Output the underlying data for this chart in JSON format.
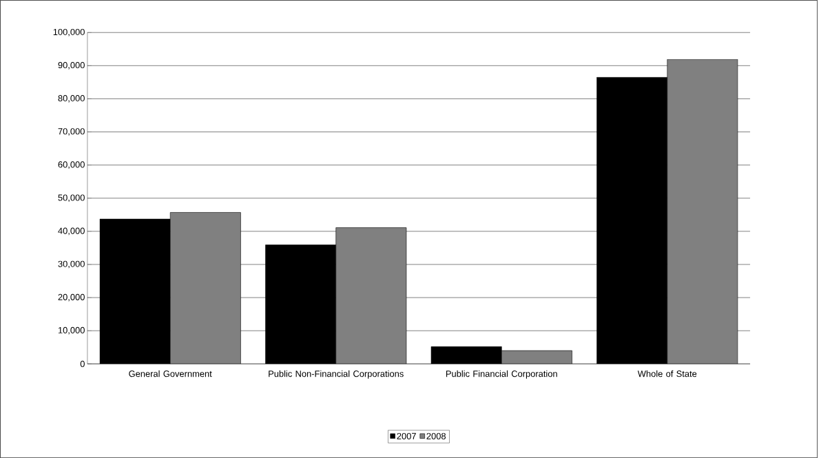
{
  "chart_data": {
    "type": "bar",
    "categories": [
      "General Government",
      "Public Non-Financial Corporations",
      "Public Financial Corporation",
      "Whole of State"
    ],
    "series": [
      {
        "name": "2007",
        "color": "#000000",
        "values": [
          43700,
          35900,
          5200,
          86500
        ]
      },
      {
        "name": "2008",
        "color": "#808080",
        "values": [
          45700,
          41100,
          4000,
          91900
        ]
      }
    ],
    "ylim": [
      0,
      100000
    ],
    "yticks": [
      {
        "value": 0,
        "label": "0"
      },
      {
        "value": 10000,
        "label": "10,000"
      },
      {
        "value": 20000,
        "label": "20,000"
      },
      {
        "value": 30000,
        "label": "30,000"
      },
      {
        "value": 40000,
        "label": "40,000"
      },
      {
        "value": 50000,
        "label": "50,000"
      },
      {
        "value": 60000,
        "label": "60,000"
      },
      {
        "value": 70000,
        "label": "70,000"
      },
      {
        "value": 80000,
        "label": "80,000"
      },
      {
        "value": 90000,
        "label": "90,000"
      },
      {
        "value": 100000,
        "label": "100,000"
      }
    ],
    "grid": "y",
    "legend": "bottom"
  }
}
